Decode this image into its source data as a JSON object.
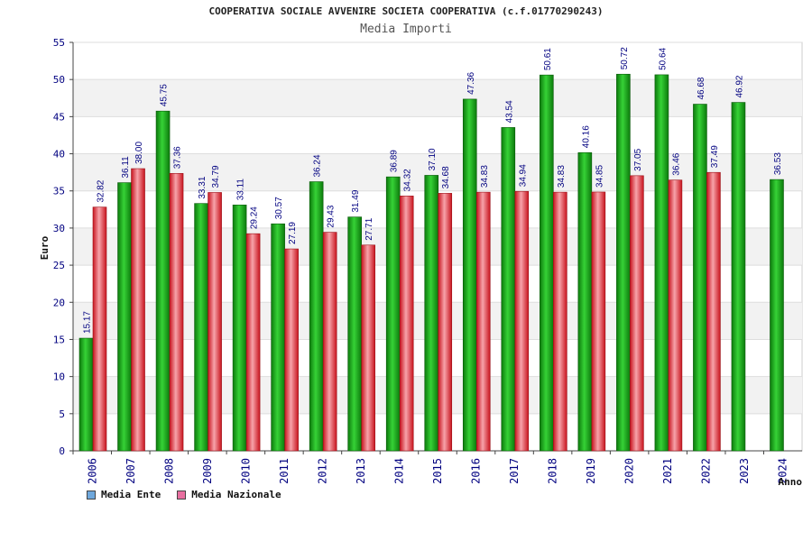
{
  "chart_data": {
    "type": "bar",
    "title": "COOPERATIVA SOCIALE AVVENIRE SOCIETA COOPERATIVA (c.f.01770290243)",
    "subtitle": "Media Importi",
    "xlabel": "Anno",
    "ylabel": "Euro",
    "ylim": [
      0,
      55
    ],
    "ytick_step": 5,
    "grid": true,
    "legend_position": "bottom-left",
    "categories": [
      "2006",
      "2007",
      "2008",
      "2009",
      "2010",
      "2011",
      "2012",
      "2013",
      "2014",
      "2015",
      "2016",
      "2017",
      "2018",
      "2019",
      "2020",
      "2021",
      "2022",
      "2023",
      "2024"
    ],
    "series": [
      {
        "name": "Media Ente",
        "legend_color": "#6fa8dc",
        "bar_color": "#22aa22",
        "values": [
          15.17,
          36.11,
          45.75,
          33.31,
          33.11,
          30.57,
          36.24,
          31.49,
          36.89,
          37.1,
          47.36,
          43.54,
          50.61,
          40.16,
          50.72,
          50.64,
          46.68,
          46.92,
          36.53
        ],
        "labels": [
          "15.17",
          "36.11",
          "45.75",
          "33.31",
          "33.11",
          "30.57",
          "36.24",
          "31.49",
          "36.89",
          "37.10",
          "47.36",
          "43.54",
          "50.61",
          "40.16",
          "50.72",
          "50.64",
          "46.68",
          "46.92",
          "36.53"
        ]
      },
      {
        "name": "Media Nazionale",
        "legend_color": "#e86fa0",
        "bar_color": "#e83a4a",
        "values": [
          32.82,
          38.0,
          37.36,
          34.79,
          29.24,
          27.19,
          29.43,
          27.71,
          34.32,
          34.68,
          34.83,
          34.94,
          34.83,
          34.85,
          37.05,
          36.46,
          37.49,
          null,
          null
        ],
        "labels": [
          "32.82",
          "38.00",
          "37.36",
          "34.79",
          "29.24",
          "27.19",
          "29.43",
          "27.71",
          "34.32",
          "34.68",
          "34.83",
          "34.94",
          "34.83",
          "34.85",
          "37.05",
          "36.46",
          "37.49",
          "",
          ""
        ]
      }
    ]
  }
}
